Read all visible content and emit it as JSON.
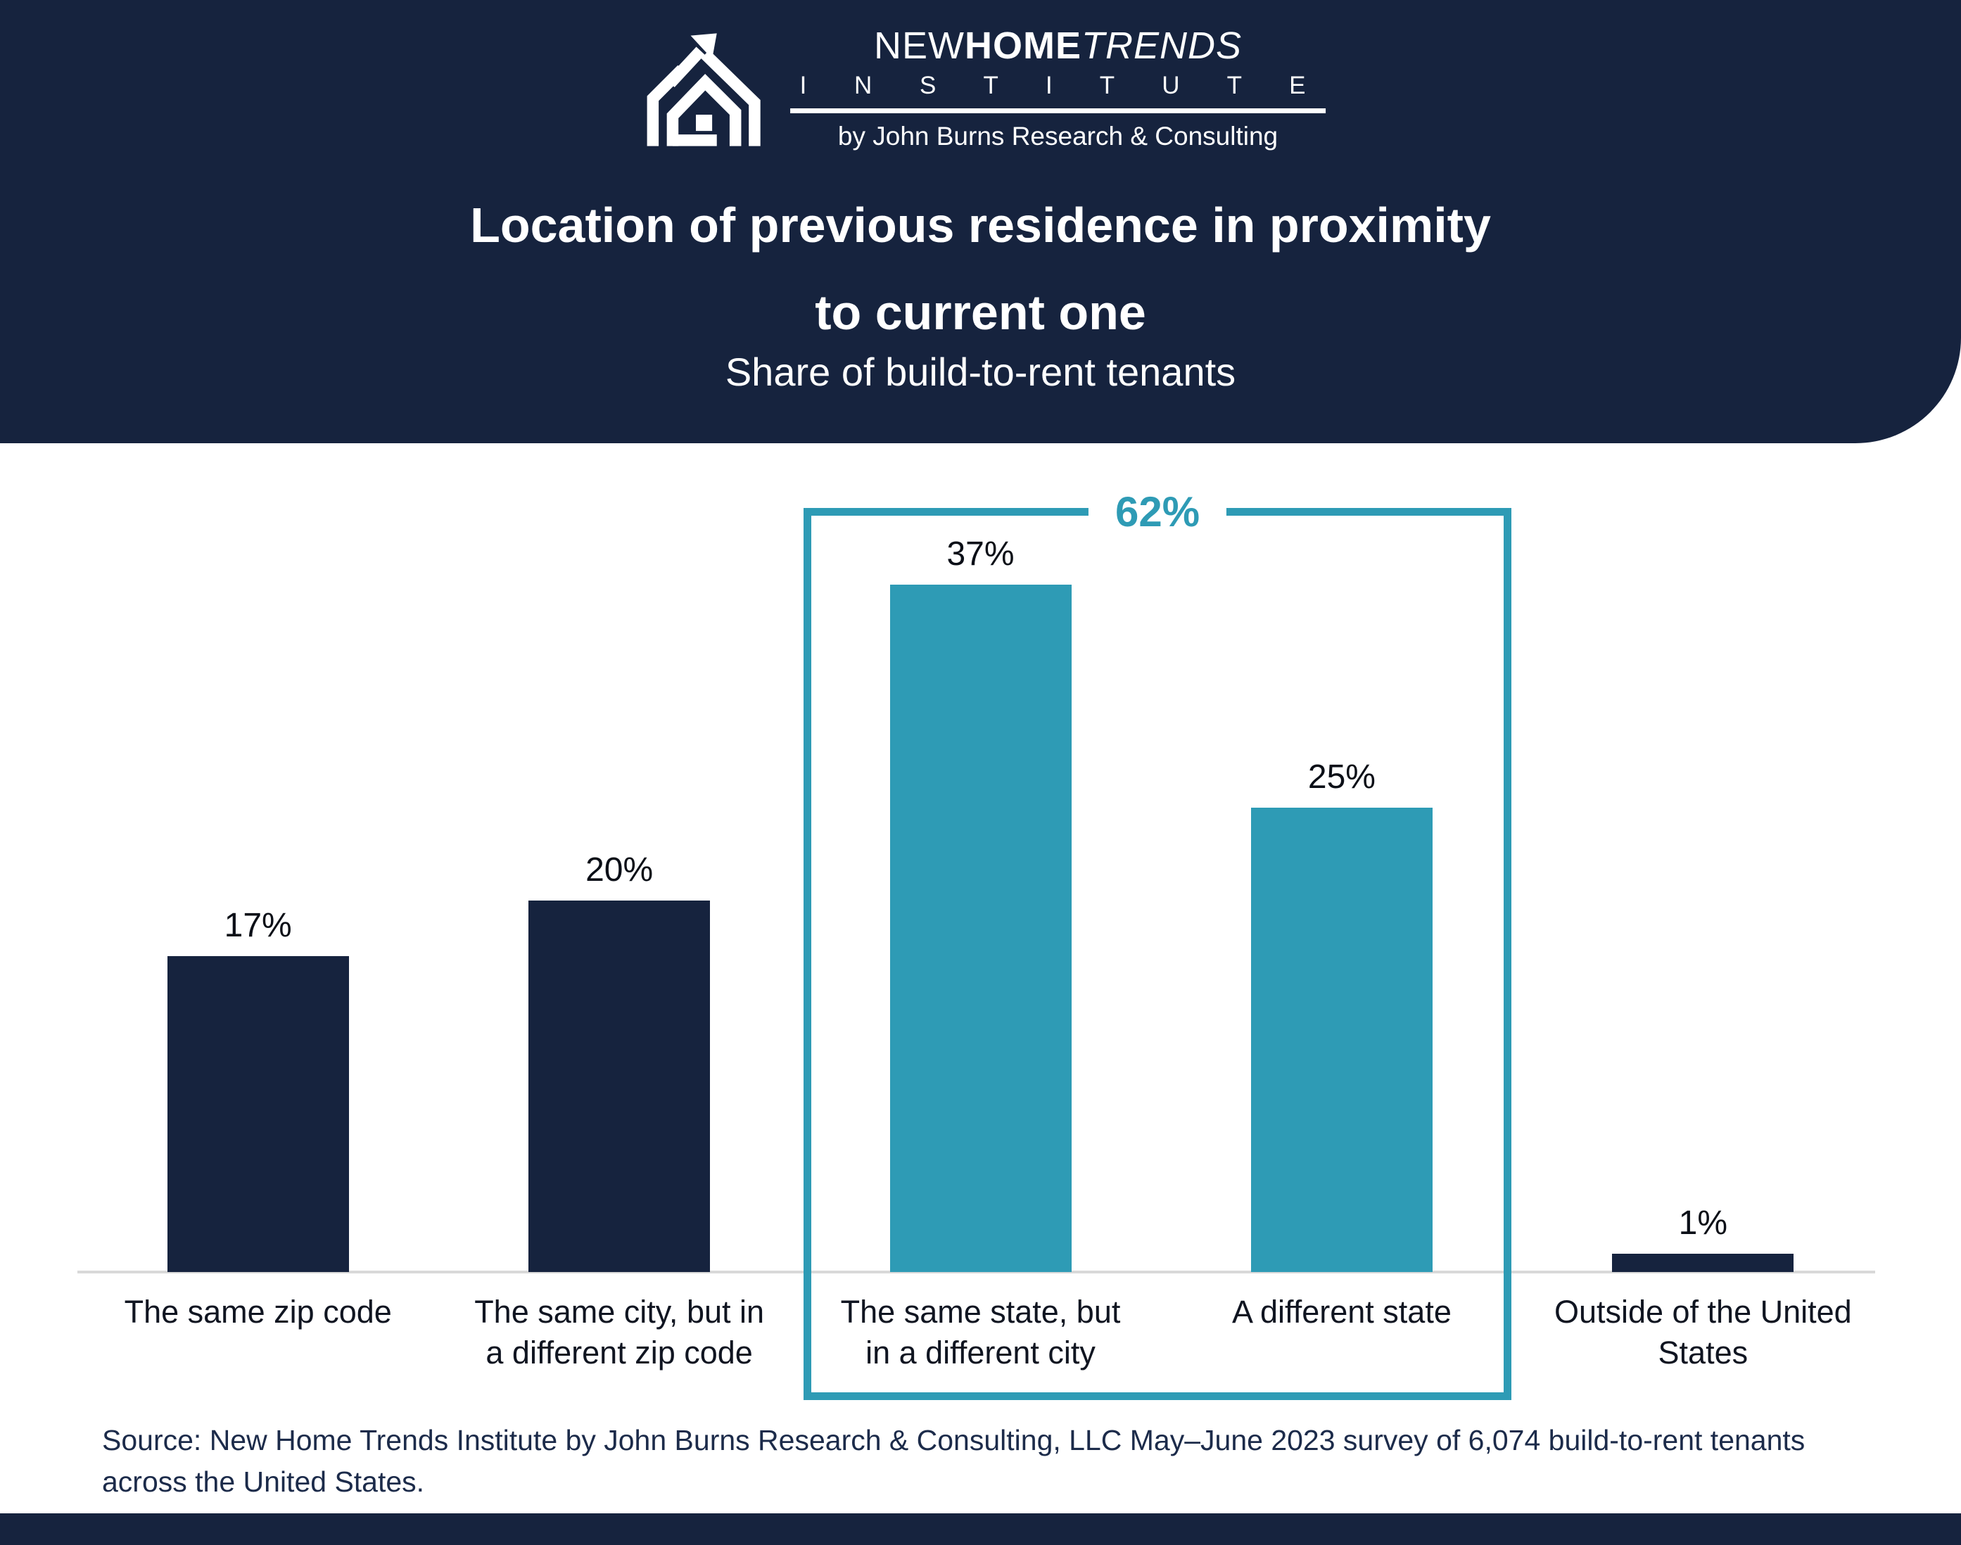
{
  "colors": {
    "navy": "#16233E",
    "teal": "#2E9BB5",
    "axis_gray": "#D9D9D9",
    "label_black": "#101521",
    "source_navy": "#1C2B4A"
  },
  "header": {
    "logo": {
      "icon": "house-arrow-icon",
      "new": "NEW",
      "home": "HOME",
      "trends": "TRENDS",
      "institute": "I N S T I T U T E",
      "byline": "by John Burns Research & Consulting"
    },
    "title_line1": "Location of previous residence in proximity",
    "title_line2": "to current one",
    "subtitle": "Share of build-to-rent tenants"
  },
  "chart_data": {
    "type": "bar",
    "title": "Location of previous residence in proximity to current one",
    "subtitle": "Share of build-to-rent tenants",
    "unit": "percent",
    "categories": [
      "The same zip code",
      "The same city, but in a different zip code",
      "The same state, but in a different city",
      "A different state",
      "Outside of the United States"
    ],
    "category_display": [
      "The same zip code",
      "The same city, but in\na different zip code",
      "The same state, but\nin a different city",
      "A different state",
      "Outside of the United\nStates"
    ],
    "values": [
      17,
      20,
      37,
      25,
      1
    ],
    "value_labels": [
      "17%",
      "20%",
      "37%",
      "25%",
      "1%"
    ],
    "bar_colors": [
      "#16233E",
      "#16233E",
      "#2E9BB5",
      "#2E9BB5",
      "#16233E"
    ],
    "highlight_group": {
      "label": "62%",
      "value": 62,
      "categories_spanned": [
        "The same state, but in a different city",
        "A different state"
      ],
      "color": "#2E9BB5"
    },
    "ylim": [
      0,
      40
    ],
    "gridlines": false,
    "legend": "none",
    "xlabel": "",
    "ylabel": ""
  },
  "source": {
    "text": "Source: New Home Trends Institute by John Burns Research & Consulting, LLC May–June 2023 survey of 6,074 build-to-rent tenants\nacross the United States."
  }
}
